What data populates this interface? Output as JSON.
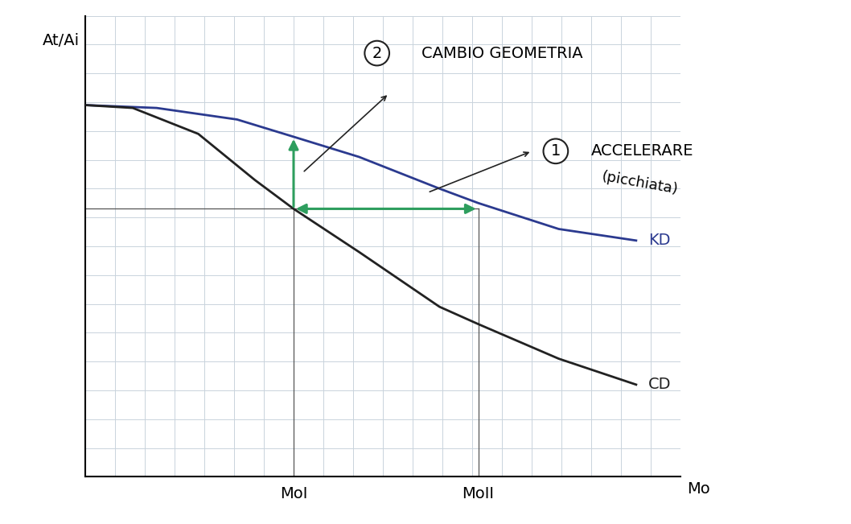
{
  "chart_data": {
    "type": "line",
    "xlabel": "Mo",
    "ylabel": "At/Ai",
    "xlim": [
      0,
      20
    ],
    "ylim": [
      0,
      16
    ],
    "xticks": [
      {
        "value": 7.0,
        "label": "MoI"
      },
      {
        "value": 13.2,
        "label": "MoII"
      }
    ],
    "tick_labels": "x",
    "series": [
      {
        "name": "KD",
        "color": "#2b3a8f",
        "x": [
          0,
          2.4,
          5.1,
          7.0,
          9.2,
          11.9,
          13.2,
          15.9,
          18.5
        ],
        "values": [
          12.9,
          12.8,
          12.4,
          11.8,
          11.1,
          10.0,
          9.5,
          8.6,
          8.2
        ]
      },
      {
        "name": "CD",
        "color": "#222222",
        "x": [
          0,
          1.6,
          3.8,
          5.7,
          7.0,
          9.2,
          11.9,
          13.2,
          15.9,
          18.5
        ],
        "values": [
          12.9,
          12.8,
          11.9,
          10.3,
          9.3,
          7.8,
          5.9,
          5.3,
          4.1,
          3.2
        ]
      }
    ],
    "annotations": [
      {
        "number": "2",
        "text": "CAMBIO GEOMETRIA"
      },
      {
        "number": "1",
        "text": "ACCELERARE",
        "note": "(picchiata)"
      }
    ]
  }
}
